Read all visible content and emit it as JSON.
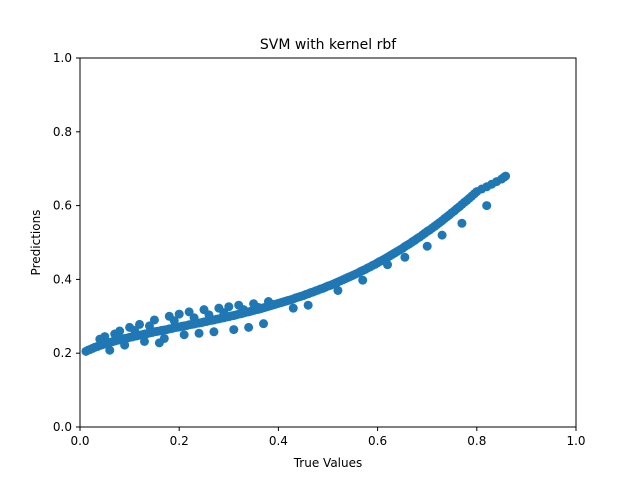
{
  "chart_data": {
    "type": "scatter",
    "title": "SVM with kernel rbf",
    "xlabel": "True Values",
    "ylabel": "Predictions",
    "xlim": [
      0,
      1
    ],
    "ylim": [
      0,
      1
    ],
    "xticks": [
      "0.0",
      "0.2",
      "0.4",
      "0.6",
      "0.8",
      "1.0"
    ],
    "yticks": [
      "0.0",
      "0.2",
      "0.4",
      "0.6",
      "0.8",
      "1.0"
    ],
    "grid": false,
    "series": [
      {
        "name": "predictions",
        "color": "#1f77b4",
        "x": [
          0.012,
          0.016,
          0.02,
          0.025,
          0.03,
          0.035,
          0.04,
          0.045,
          0.05,
          0.055,
          0.06,
          0.065,
          0.07,
          0.075,
          0.08,
          0.085,
          0.09,
          0.095,
          0.1,
          0.105,
          0.11,
          0.115,
          0.12,
          0.125,
          0.13,
          0.135,
          0.14,
          0.145,
          0.15,
          0.155,
          0.16,
          0.165,
          0.17,
          0.175,
          0.18,
          0.185,
          0.19,
          0.195,
          0.2,
          0.205,
          0.21,
          0.215,
          0.22,
          0.225,
          0.23,
          0.235,
          0.24,
          0.245,
          0.25,
          0.255,
          0.26,
          0.265,
          0.27,
          0.275,
          0.28,
          0.285,
          0.29,
          0.295,
          0.3,
          0.305,
          0.31,
          0.315,
          0.32,
          0.325,
          0.33,
          0.335,
          0.34,
          0.345,
          0.35,
          0.355,
          0.36,
          0.365,
          0.37,
          0.375,
          0.38,
          0.385,
          0.39,
          0.395,
          0.4,
          0.405,
          0.41,
          0.415,
          0.42,
          0.425,
          0.43,
          0.435,
          0.44,
          0.445,
          0.45,
          0.455,
          0.46,
          0.465,
          0.47,
          0.475,
          0.48,
          0.485,
          0.49,
          0.495,
          0.5,
          0.505,
          0.51,
          0.515,
          0.52,
          0.525,
          0.53,
          0.535,
          0.54,
          0.545,
          0.55,
          0.555,
          0.56,
          0.565,
          0.57,
          0.575,
          0.58,
          0.585,
          0.59,
          0.595,
          0.6,
          0.605,
          0.61,
          0.615,
          0.62,
          0.625,
          0.63,
          0.635,
          0.64,
          0.645,
          0.65,
          0.655,
          0.66,
          0.665,
          0.67,
          0.675,
          0.68,
          0.685,
          0.69,
          0.695,
          0.7,
          0.705,
          0.71,
          0.715,
          0.72,
          0.725,
          0.73,
          0.735,
          0.74,
          0.745,
          0.75,
          0.755,
          0.76,
          0.765,
          0.77,
          0.775,
          0.78,
          0.785,
          0.79,
          0.795,
          0.8,
          0.81,
          0.82,
          0.83,
          0.84,
          0.85,
          0.855,
          0.858,
          0.05,
          0.08,
          0.1,
          0.12,
          0.15,
          0.18,
          0.2,
          0.22,
          0.25,
          0.28,
          0.3,
          0.32,
          0.35,
          0.38,
          0.06,
          0.09,
          0.13,
          0.17,
          0.21,
          0.24,
          0.27,
          0.31,
          0.34,
          0.37,
          0.07,
          0.11,
          0.14,
          0.19,
          0.23,
          0.26,
          0.29,
          0.33,
          0.36,
          0.39,
          0.04,
          0.16,
          0.43,
          0.46,
          0.52,
          0.57,
          0.62,
          0.655,
          0.7,
          0.73,
          0.77,
          0.82
        ],
        "y": [
          0.205,
          0.208,
          0.21,
          0.213,
          0.216,
          0.218,
          0.221,
          0.223,
          0.225,
          0.227,
          0.229,
          0.231,
          0.233,
          0.235,
          0.236,
          0.238,
          0.24,
          0.241,
          0.243,
          0.244,
          0.246,
          0.247,
          0.249,
          0.25,
          0.252,
          0.253,
          0.255,
          0.256,
          0.258,
          0.259,
          0.26,
          0.262,
          0.263,
          0.264,
          0.266,
          0.267,
          0.269,
          0.27,
          0.271,
          0.273,
          0.274,
          0.275,
          0.277,
          0.278,
          0.279,
          0.281,
          0.282,
          0.283,
          0.285,
          0.286,
          0.288,
          0.289,
          0.29,
          0.292,
          0.293,
          0.295,
          0.296,
          0.298,
          0.299,
          0.301,
          0.302,
          0.304,
          0.306,
          0.307,
          0.309,
          0.311,
          0.312,
          0.314,
          0.316,
          0.318,
          0.319,
          0.321,
          0.323,
          0.325,
          0.327,
          0.329,
          0.331,
          0.333,
          0.335,
          0.337,
          0.339,
          0.341,
          0.343,
          0.345,
          0.347,
          0.35,
          0.352,
          0.354,
          0.356,
          0.359,
          0.361,
          0.364,
          0.366,
          0.369,
          0.371,
          0.374,
          0.376,
          0.379,
          0.382,
          0.384,
          0.387,
          0.39,
          0.393,
          0.396,
          0.399,
          0.402,
          0.405,
          0.408,
          0.411,
          0.414,
          0.417,
          0.421,
          0.424,
          0.427,
          0.431,
          0.434,
          0.438,
          0.441,
          0.445,
          0.449,
          0.452,
          0.456,
          0.46,
          0.464,
          0.468,
          0.472,
          0.476,
          0.48,
          0.484,
          0.489,
          0.493,
          0.497,
          0.502,
          0.506,
          0.511,
          0.515,
          0.52,
          0.525,
          0.53,
          0.534,
          0.539,
          0.544,
          0.549,
          0.554,
          0.559,
          0.565,
          0.57,
          0.575,
          0.581,
          0.586,
          0.592,
          0.597,
          0.603,
          0.609,
          0.614,
          0.62,
          0.626,
          0.632,
          0.638,
          0.645,
          0.651,
          0.658,
          0.665,
          0.672,
          0.677,
          0.68,
          0.245,
          0.26,
          0.27,
          0.278,
          0.29,
          0.3,
          0.306,
          0.312,
          0.318,
          0.322,
          0.326,
          0.33,
          0.334,
          0.34,
          0.208,
          0.222,
          0.232,
          0.24,
          0.25,
          0.254,
          0.258,
          0.264,
          0.27,
          0.28,
          0.252,
          0.262,
          0.274,
          0.288,
          0.296,
          0.304,
          0.31,
          0.318,
          0.324,
          0.332,
          0.238,
          0.228,
          0.322,
          0.33,
          0.37,
          0.398,
          0.44,
          0.46,
          0.49,
          0.52,
          0.552,
          0.6
        ]
      }
    ]
  }
}
